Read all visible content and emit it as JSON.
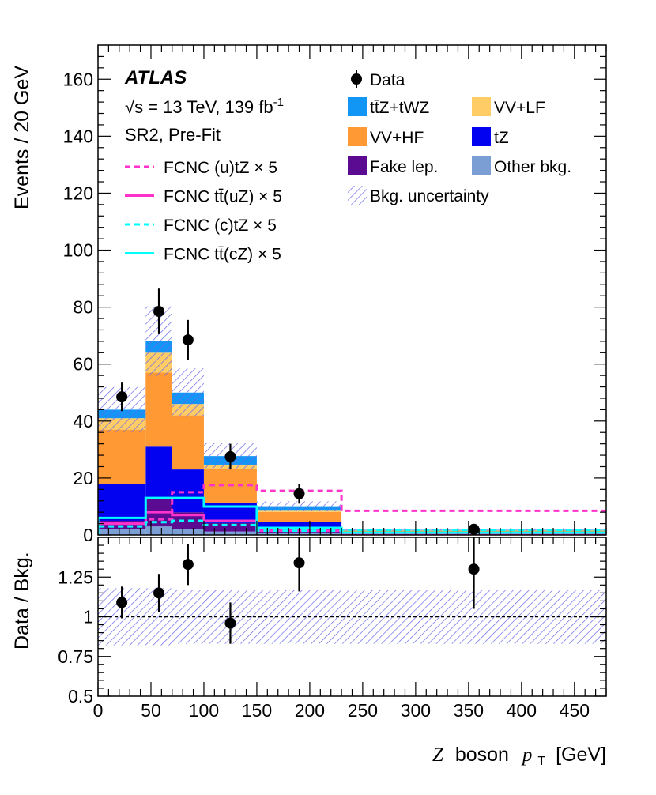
{
  "chart_data": [
    {
      "type": "stacked_histogram",
      "panel": "main",
      "title": "",
      "experiment": "ATLAS",
      "energy_label": "√s = 13 TeV, 139 fb⁻¹",
      "region_label": "SR2, Pre-Fit",
      "ylabel": "Events / 20 GeV",
      "xlabel": "Z boson pT [GeV]",
      "xlim": [
        0,
        480
      ],
      "ylim": [
        0,
        172
      ],
      "yticks": [
        "0",
        "20",
        "40",
        "60",
        "80",
        "100",
        "120",
        "140",
        "160"
      ],
      "bin_edges": [
        0,
        45,
        70,
        100,
        150,
        230,
        480
      ],
      "stack": [
        {
          "name": "Other bkg.",
          "color": "#7b9fd5",
          "values": [
            2,
            3,
            2,
            1.2,
            0.6,
            0.3
          ]
        },
        {
          "name": "Fake lep.",
          "color": "#5b0b91",
          "values": [
            3,
            10,
            6,
            3,
            1,
            0.5
          ]
        },
        {
          "name": "tZ",
          "color": "#0202f0",
          "values": [
            13,
            18,
            15,
            7,
            3,
            0.3
          ]
        },
        {
          "name": "VV+HF",
          "color": "#fe9933",
          "values": [
            19,
            26,
            19,
            12,
            3.5,
            0.4
          ]
        },
        {
          "name": "VV+LF",
          "color": "#ffcc66",
          "values": [
            4,
            7,
            4,
            1.5,
            0.7,
            0.1
          ]
        },
        {
          "name": "tt̄Z+tWZ",
          "color": "#1196f5",
          "values": [
            3,
            4,
            4,
            3,
            1.3,
            0.2
          ]
        }
      ],
      "uncertainty": {
        "name": "Bkg. uncertainty",
        "rel_values": [
          0.18,
          0.18,
          0.17,
          0.17,
          0.17,
          0.17
        ]
      },
      "signals": [
        {
          "name": "FCNC (u)tZ × 5",
          "color": "#ff33cc",
          "style": "dashed",
          "values": [
            4,
            5.5,
            15,
            17.5,
            15.5,
            8.5
          ]
        },
        {
          "name": "FCNC tt̄(uZ) × 5",
          "color": "#ff33cc",
          "style": "solid",
          "values": [
            4,
            8,
            7,
            5,
            1.5,
            0.3
          ]
        },
        {
          "name": "FCNC (c)tZ × 5",
          "color": "#00ffff",
          "style": "dashed",
          "values": [
            3,
            4.5,
            5,
            3.5,
            1.5,
            1.8
          ]
        },
        {
          "name": "FCNC tt̄(cZ) × 5",
          "color": "#00ffff",
          "style": "solid",
          "values": [
            6,
            13,
            13,
            10,
            2.5,
            0.8
          ]
        }
      ],
      "data": {
        "name": "Data",
        "x": [
          22.5,
          57.5,
          85,
          125,
          190,
          355
        ],
        "y": [
          48.5,
          78.5,
          68.5,
          27.5,
          14.5,
          2
        ],
        "err": [
          5,
          8,
          7,
          4.5,
          3.5,
          1.2
        ]
      },
      "legend": [
        {
          "label": "Data",
          "kind": "marker"
        },
        {
          "label": "tt̄Z+tWZ",
          "kind": "box",
          "color": "#1196f5"
        },
        {
          "label": "VV+LF",
          "kind": "box",
          "color": "#ffcc66"
        },
        {
          "label": "VV+HF",
          "kind": "box",
          "color": "#fe9933"
        },
        {
          "label": "tZ",
          "kind": "box",
          "color": "#0202f0"
        },
        {
          "label": "Fake lep.",
          "kind": "box",
          "color": "#5b0b91"
        },
        {
          "label": "Other bkg.",
          "kind": "box",
          "color": "#7b9fd5"
        },
        {
          "label": "Bkg. uncertainty",
          "kind": "hatch",
          "color": "#6666ee"
        }
      ]
    },
    {
      "type": "ratio",
      "panel": "ratio",
      "ylabel": "Data / Bkg.",
      "xlabel": "Z boson pT [GeV]",
      "xlim": [
        0,
        480
      ],
      "ylim": [
        0.5,
        1.5
      ],
      "yticks": [
        "0.5",
        "0.75",
        "1",
        "1.25"
      ],
      "xticks": [
        "0",
        "50",
        "100",
        "150",
        "200",
        "250",
        "300",
        "350",
        "400",
        "450"
      ],
      "reference": 1,
      "bin_edges": [
        0,
        45,
        70,
        100,
        150,
        230,
        480
      ],
      "band_low": [
        0.82,
        0.82,
        0.83,
        0.83,
        0.83,
        0.83
      ],
      "band_high": [
        1.18,
        1.18,
        1.17,
        1.17,
        1.17,
        1.17
      ],
      "x": [
        22.5,
        57.5,
        85,
        125,
        190,
        355
      ],
      "y": [
        1.09,
        1.15,
        1.33,
        0.96,
        1.34,
        1.3
      ],
      "err": [
        0.1,
        0.12,
        0.13,
        0.13,
        0.18,
        0.25
      ]
    }
  ],
  "labels": {
    "xlabel_Z": "Z",
    "xlabel_mid": "boson",
    "xlabel_p": "p",
    "xlabel_sub": "T",
    "xlabel_unit": "[GeV]",
    "energy_pre": "√s = 13 TeV, 139 fb",
    "energy_sup": "-1"
  }
}
